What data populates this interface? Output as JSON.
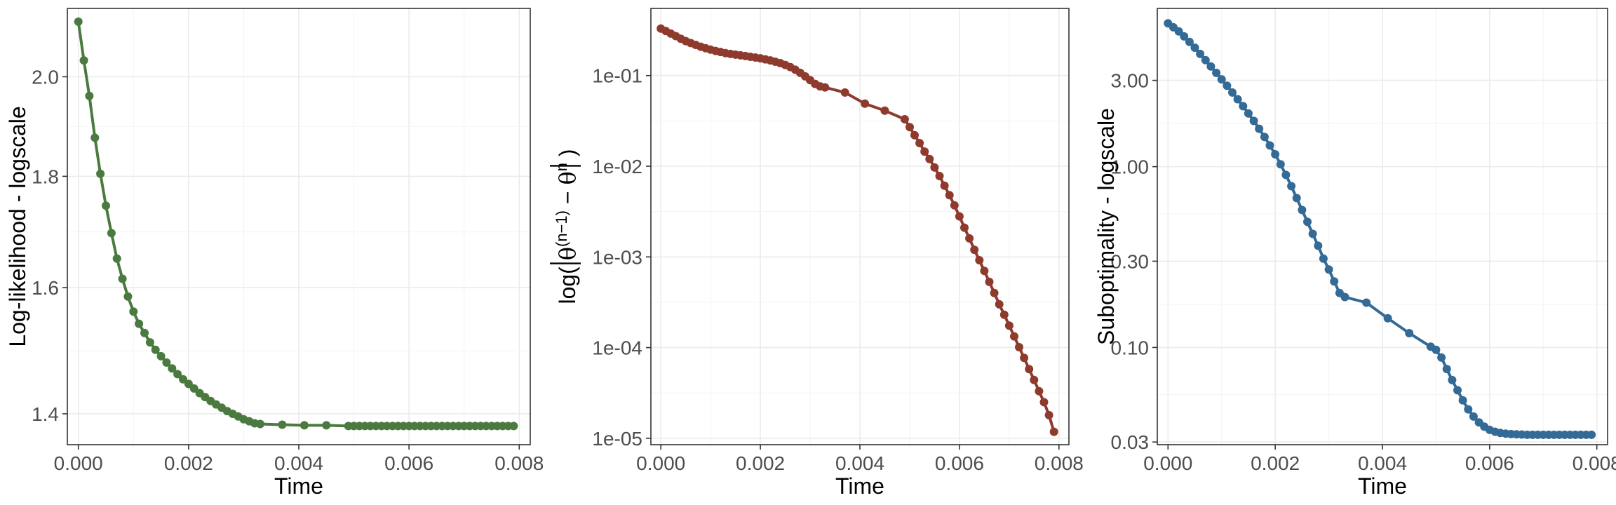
{
  "chart_data": [
    {
      "type": "line",
      "xlabel": "Time",
      "ylabel": "Log-likelihood - logscale",
      "y_log": true,
      "xlim": [
        -0.0002,
        0.0082
      ],
      "ylim": [
        1.355,
        2.15
      ],
      "x_ticks": [
        0,
        0.002,
        0.004,
        0.006,
        0.008
      ],
      "x_tick_labels": [
        "0.000",
        "0.002",
        "0.004",
        "0.006",
        "0.008"
      ],
      "y_ticks": [
        1.4,
        1.6,
        1.8,
        2.0
      ],
      "y_tick_labels": [
        "1.4",
        "1.6",
        "1.8",
        "2.0"
      ],
      "grid": true,
      "color": "#4a7a3f",
      "series": [
        {
          "x": [
            0,
            0.0001,
            0.0002,
            0.0003,
            0.0004,
            0.0005,
            0.0006,
            0.0007,
            0.0008,
            0.0009,
            0.001,
            0.0011,
            0.0012,
            0.0013,
            0.0014,
            0.0015,
            0.0016,
            0.0017,
            0.0018,
            0.0019,
            0.002,
            0.0021,
            0.0022,
            0.0023,
            0.0024,
            0.0025,
            0.0026,
            0.0027,
            0.0028,
            0.0029,
            0.003,
            0.0031,
            0.0032,
            0.0033,
            0.0037,
            0.0041,
            0.0045,
            0.0049,
            0.005,
            0.0051,
            0.0052,
            0.0053,
            0.0054,
            0.0055,
            0.0056,
            0.0057,
            0.0058,
            0.0059,
            0.006,
            0.0061,
            0.0062,
            0.0063,
            0.0064,
            0.0065,
            0.0066,
            0.0067,
            0.0068,
            0.0069,
            0.007,
            0.0071,
            0.0072,
            0.0073,
            0.0074,
            0.0075,
            0.0076,
            0.0077,
            0.0078,
            0.0079
          ],
          "values": [
            2.12,
            2.035,
            1.96,
            1.875,
            1.805,
            1.745,
            1.695,
            1.65,
            1.615,
            1.585,
            1.56,
            1.54,
            1.525,
            1.51,
            1.498,
            1.488,
            1.478,
            1.469,
            1.46,
            1.452,
            1.445,
            1.438,
            1.431,
            1.425,
            1.419,
            1.414,
            1.409,
            1.404,
            1.4,
            1.396,
            1.392,
            1.389,
            1.386,
            1.385,
            1.384,
            1.383,
            1.383,
            1.382,
            1.382,
            1.382,
            1.382,
            1.382,
            1.382,
            1.382,
            1.382,
            1.382,
            1.382,
            1.382,
            1.382,
            1.382,
            1.382,
            1.382,
            1.382,
            1.382,
            1.382,
            1.382,
            1.382,
            1.382,
            1.382,
            1.382,
            1.382,
            1.382,
            1.382,
            1.382,
            1.382,
            1.382,
            1.382,
            1.382
          ]
        }
      ]
    },
    {
      "type": "line",
      "xlabel": "Time",
      "ylabel": "log(|θ(n-1) − θn|)",
      "y_log": true,
      "xlim": [
        -0.0002,
        0.0082
      ],
      "ylim": [
        8.5e-06,
        0.55
      ],
      "x_ticks": [
        0,
        0.002,
        0.004,
        0.006,
        0.008
      ],
      "x_tick_labels": [
        "0.000",
        "0.002",
        "0.004",
        "0.006",
        "0.008"
      ],
      "y_ticks": [
        1e-05,
        0.0001,
        0.001,
        0.01,
        0.1
      ],
      "y_tick_labels": [
        "1e-05",
        "1e-04",
        "1e-03",
        "1e-02",
        "1e-01"
      ],
      "grid": true,
      "color": "#8e3b2e",
      "series": [
        {
          "x": [
            0,
            0.0001,
            0.0002,
            0.0003,
            0.0004,
            0.0005,
            0.0006,
            0.0007,
            0.0008,
            0.0009,
            0.001,
            0.0011,
            0.0012,
            0.0013,
            0.0014,
            0.0015,
            0.0016,
            0.0017,
            0.0018,
            0.0019,
            0.002,
            0.0021,
            0.0022,
            0.0023,
            0.0024,
            0.0025,
            0.0026,
            0.0027,
            0.0028,
            0.0029,
            0.003,
            0.0031,
            0.0032,
            0.0033,
            0.0037,
            0.0041,
            0.0045,
            0.0049,
            0.005,
            0.0051,
            0.0052,
            0.0053,
            0.0054,
            0.0055,
            0.0056,
            0.0057,
            0.0058,
            0.0059,
            0.006,
            0.0061,
            0.0062,
            0.0063,
            0.0064,
            0.0065,
            0.0066,
            0.0067,
            0.0068,
            0.0069,
            0.007,
            0.0071,
            0.0072,
            0.0073,
            0.0074,
            0.0075,
            0.0076,
            0.0077,
            0.0078,
            0.0079
          ],
          "values": [
            0.33,
            0.31,
            0.29,
            0.272,
            0.255,
            0.24,
            0.228,
            0.218,
            0.208,
            0.2,
            0.193,
            0.187,
            0.182,
            0.177,
            0.173,
            0.17,
            0.167,
            0.164,
            0.161,
            0.158,
            0.155,
            0.151,
            0.147,
            0.142,
            0.137,
            0.131,
            0.124,
            0.116,
            0.107,
            0.098,
            0.089,
            0.081,
            0.076,
            0.074,
            0.065,
            0.049,
            0.041,
            0.033,
            0.027,
            0.022,
            0.018,
            0.0145,
            0.012,
            0.0097,
            0.0078,
            0.0061,
            0.0048,
            0.0037,
            0.0028,
            0.0021,
            0.0016,
            0.0012,
            0.00092,
            0.0007,
            0.00053,
            0.0004,
            0.0003,
            0.00023,
            0.000175,
            0.000133,
            0.000101,
            7.7e-05,
            5.8e-05,
            4.4e-05,
            3.3e-05,
            2.5e-05,
            1.8e-05,
            1.18e-05
          ]
        }
      ]
    },
    {
      "type": "line",
      "xlabel": "Time",
      "ylabel": "Suboptimality - logscale",
      "y_log": true,
      "xlim": [
        -0.0002,
        0.0082
      ],
      "ylim": [
        0.029,
        7.5
      ],
      "x_ticks": [
        0,
        0.002,
        0.004,
        0.006,
        0.008
      ],
      "x_tick_labels": [
        "0.000",
        "0.002",
        "0.004",
        "0.006",
        "0.008"
      ],
      "y_ticks": [
        0.03,
        0.1,
        0.3,
        1.0,
        3.0
      ],
      "y_tick_labels": [
        "0.03",
        "0.10",
        "0.30",
        "1.00",
        "3.00"
      ],
      "grid": true,
      "color": "#336a96",
      "series": [
        {
          "x": [
            0,
            0.0001,
            0.0002,
            0.0003,
            0.0004,
            0.0005,
            0.0006,
            0.0007,
            0.0008,
            0.0009,
            0.001,
            0.0011,
            0.0012,
            0.0013,
            0.0014,
            0.0015,
            0.0016,
            0.0017,
            0.0018,
            0.0019,
            0.002,
            0.0021,
            0.0022,
            0.0023,
            0.0024,
            0.0025,
            0.0026,
            0.0027,
            0.0028,
            0.0029,
            0.003,
            0.0031,
            0.0032,
            0.0033,
            0.0037,
            0.0041,
            0.0045,
            0.0049,
            0.005,
            0.0051,
            0.0052,
            0.0053,
            0.0054,
            0.0055,
            0.0056,
            0.0057,
            0.0058,
            0.0059,
            0.006,
            0.0061,
            0.0062,
            0.0063,
            0.0064,
            0.0065,
            0.0066,
            0.0067,
            0.0068,
            0.0069,
            0.007,
            0.0071,
            0.0072,
            0.0073,
            0.0074,
            0.0075,
            0.0076,
            0.0077,
            0.0078,
            0.0079
          ],
          "values": [
            6.2,
            5.9,
            5.6,
            5.25,
            4.9,
            4.55,
            4.2,
            3.88,
            3.58,
            3.3,
            3.04,
            2.8,
            2.57,
            2.36,
            2.16,
            1.97,
            1.79,
            1.62,
            1.46,
            1.31,
            1.17,
            1.03,
            0.9,
            0.78,
            0.67,
            0.576,
            0.495,
            0.425,
            0.365,
            0.31,
            0.27,
            0.232,
            0.2,
            0.19,
            0.177,
            0.145,
            0.12,
            0.101,
            0.097,
            0.088,
            0.076,
            0.066,
            0.058,
            0.051,
            0.0455,
            0.0415,
            0.0385,
            0.0365,
            0.035,
            0.0342,
            0.0337,
            0.0334,
            0.0332,
            0.0331,
            0.033,
            0.0329,
            0.0329,
            0.0329,
            0.0329,
            0.0329,
            0.0329,
            0.0329,
            0.0329,
            0.0329,
            0.0329,
            0.0329,
            0.0329,
            0.0329
          ]
        }
      ]
    }
  ]
}
